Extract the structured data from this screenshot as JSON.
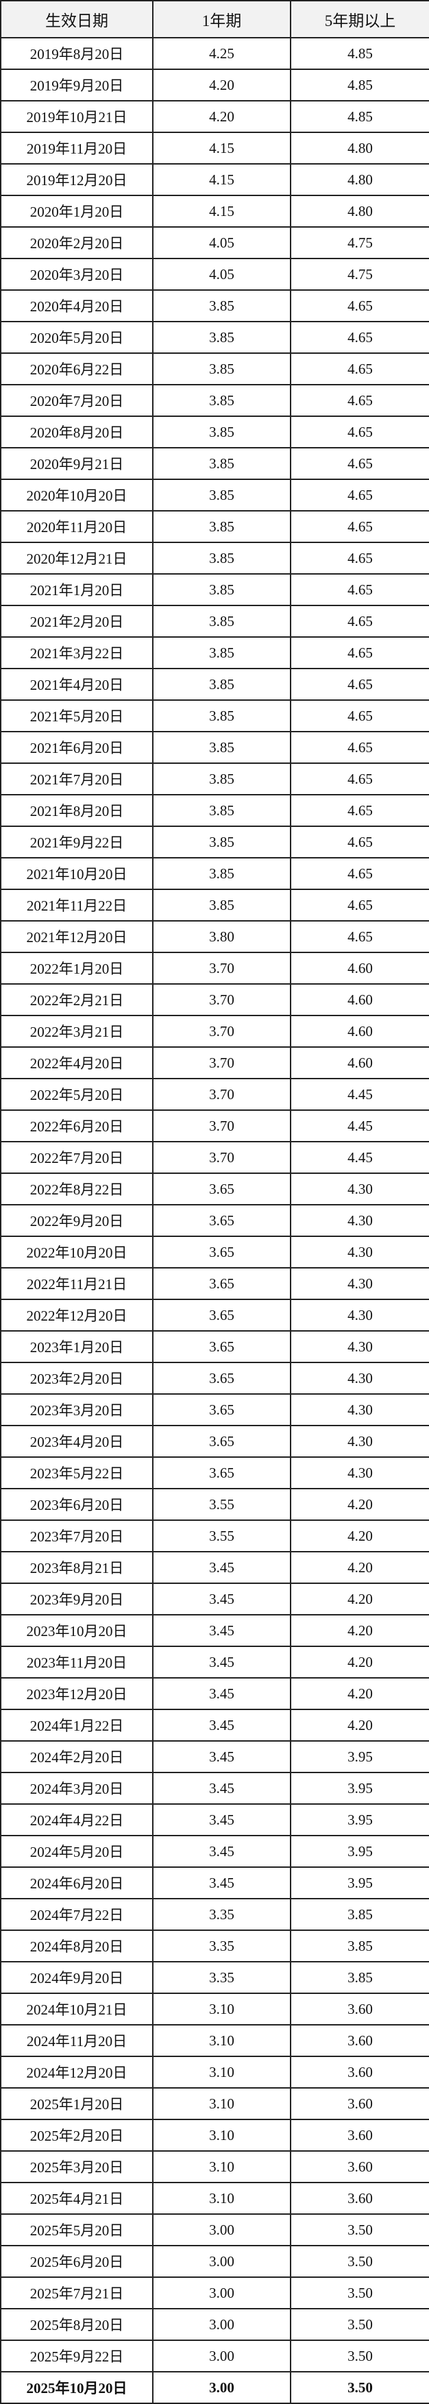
{
  "table": {
    "headers": [
      "生效日期",
      "1年期",
      "5年期以上"
    ],
    "rows": [
      [
        "2019年8月20日",
        "4.25",
        "4.85"
      ],
      [
        "2019年9月20日",
        "4.20",
        "4.85"
      ],
      [
        "2019年10月21日",
        "4.20",
        "4.85"
      ],
      [
        "2019年11月20日",
        "4.15",
        "4.80"
      ],
      [
        "2019年12月20日",
        "4.15",
        "4.80"
      ],
      [
        "2020年1月20日",
        "4.15",
        "4.80"
      ],
      [
        "2020年2月20日",
        "4.05",
        "4.75"
      ],
      [
        "2020年3月20日",
        "4.05",
        "4.75"
      ],
      [
        "2020年4月20日",
        "3.85",
        "4.65"
      ],
      [
        "2020年5月20日",
        "3.85",
        "4.65"
      ],
      [
        "2020年6月22日",
        "3.85",
        "4.65"
      ],
      [
        "2020年7月20日",
        "3.85",
        "4.65"
      ],
      [
        "2020年8月20日",
        "3.85",
        "4.65"
      ],
      [
        "2020年9月21日",
        "3.85",
        "4.65"
      ],
      [
        "2020年10月20日",
        "3.85",
        "4.65"
      ],
      [
        "2020年11月20日",
        "3.85",
        "4.65"
      ],
      [
        "2020年12月21日",
        "3.85",
        "4.65"
      ],
      [
        "2021年1月20日",
        "3.85",
        "4.65"
      ],
      [
        "2021年2月20日",
        "3.85",
        "4.65"
      ],
      [
        "2021年3月22日",
        "3.85",
        "4.65"
      ],
      [
        "2021年4月20日",
        "3.85",
        "4.65"
      ],
      [
        "2021年5月20日",
        "3.85",
        "4.65"
      ],
      [
        "2021年6月20日",
        "3.85",
        "4.65"
      ],
      [
        "2021年7月20日",
        "3.85",
        "4.65"
      ],
      [
        "2021年8月20日",
        "3.85",
        "4.65"
      ],
      [
        "2021年9月22日",
        "3.85",
        "4.65"
      ],
      [
        "2021年10月20日",
        "3.85",
        "4.65"
      ],
      [
        "2021年11月22日",
        "3.85",
        "4.65"
      ],
      [
        "2021年12月20日",
        "3.80",
        "4.65"
      ],
      [
        "2022年1月20日",
        "3.70",
        "4.60"
      ],
      [
        "2022年2月21日",
        "3.70",
        "4.60"
      ],
      [
        "2022年3月21日",
        "3.70",
        "4.60"
      ],
      [
        "2022年4月20日",
        "3.70",
        "4.60"
      ],
      [
        "2022年5月20日",
        "3.70",
        "4.45"
      ],
      [
        "2022年6月20日",
        "3.70",
        "4.45"
      ],
      [
        "2022年7月20日",
        "3.70",
        "4.45"
      ],
      [
        "2022年8月22日",
        "3.65",
        "4.30"
      ],
      [
        "2022年9月20日",
        "3.65",
        "4.30"
      ],
      [
        "2022年10月20日",
        "3.65",
        "4.30"
      ],
      [
        "2022年11月21日",
        "3.65",
        "4.30"
      ],
      [
        "2022年12月20日",
        "3.65",
        "4.30"
      ],
      [
        "2023年1月20日",
        "3.65",
        "4.30"
      ],
      [
        "2023年2月20日",
        "3.65",
        "4.30"
      ],
      [
        "2023年3月20日",
        "3.65",
        "4.30"
      ],
      [
        "2023年4月20日",
        "3.65",
        "4.30"
      ],
      [
        "2023年5月22日",
        "3.65",
        "4.30"
      ],
      [
        "2023年6月20日",
        "3.55",
        "4.20"
      ],
      [
        "2023年7月20日",
        "3.55",
        "4.20"
      ],
      [
        "2023年8月21日",
        "3.45",
        "4.20"
      ],
      [
        "2023年9月20日",
        "3.45",
        "4.20"
      ],
      [
        "2023年10月20日",
        "3.45",
        "4.20"
      ],
      [
        "2023年11月20日",
        "3.45",
        "4.20"
      ],
      [
        "2023年12月20日",
        "3.45",
        "4.20"
      ],
      [
        "2024年1月22日",
        "3.45",
        "4.20"
      ],
      [
        "2024年2月20日",
        "3.45",
        "3.95"
      ],
      [
        "2024年3月20日",
        "3.45",
        "3.95"
      ],
      [
        "2024年4月22日",
        "3.45",
        "3.95"
      ],
      [
        "2024年5月20日",
        "3.45",
        "3.95"
      ],
      [
        "2024年6月20日",
        "3.45",
        "3.95"
      ],
      [
        "2024年7月22日",
        "3.35",
        "3.85"
      ],
      [
        "2024年8月20日",
        "3.35",
        "3.85"
      ],
      [
        "2024年9月20日",
        "3.35",
        "3.85"
      ],
      [
        "2024年10月21日",
        "3.10",
        "3.60"
      ],
      [
        "2024年11月20日",
        "3.10",
        "3.60"
      ],
      [
        "2024年12月20日",
        "3.10",
        "3.60"
      ],
      [
        "2025年1月20日",
        "3.10",
        "3.60"
      ],
      [
        "2025年2月20日",
        "3.10",
        "3.60"
      ],
      [
        "2025年3月20日",
        "3.10",
        "3.60"
      ],
      [
        "2025年4月21日",
        "3.10",
        "3.60"
      ],
      [
        "2025年5月20日",
        "3.00",
        "3.50"
      ],
      [
        "2025年6月20日",
        "3.00",
        "3.50"
      ],
      [
        "2025年7月21日",
        "3.00",
        "3.50"
      ],
      [
        "2025年8月20日",
        "3.00",
        "3.50"
      ],
      [
        "2025年9月22日",
        "3.00",
        "3.50"
      ],
      [
        "2025年10月20日",
        "3.00",
        "3.50"
      ]
    ],
    "highlighted_row": "last",
    "header_bg": "#f2f2f2",
    "border_color": "#222222"
  }
}
